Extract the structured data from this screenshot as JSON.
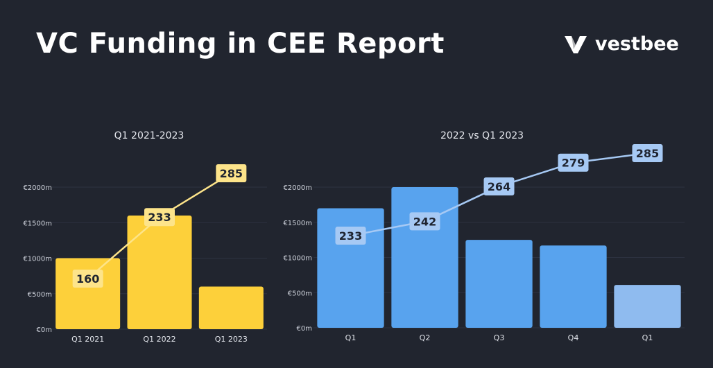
{
  "header": {
    "title": "VC Funding in CEE Report",
    "brand": "vestbee"
  },
  "colors": {
    "background": "#21252f",
    "yellow_bar": "#fdd03a",
    "yellow_label": "#fde48a",
    "blue_bar": "#58a3ee",
    "blue_bar_light": "#8fbbef",
    "blue_label": "#a6c9f4",
    "label_text": "#1f2430"
  },
  "chart_data": [
    {
      "type": "bar",
      "title": "Q1 2021-2023",
      "categories": [
        "Q1 2021",
        "Q1 2022",
        "Q1 2023"
      ],
      "values": [
        1000,
        1600,
        600
      ],
      "ylim": [
        0,
        2000
      ],
      "yticks": [
        "€0m",
        "€500m",
        "€1000m",
        "€1500m",
        "€2000m"
      ],
      "line_labels": [
        "160",
        "233",
        "285"
      ],
      "line_values": [
        160,
        233,
        285
      ],
      "grid": true
    },
    {
      "type": "bar",
      "title": "2022 vs Q1 2023",
      "categories": [
        "Q1",
        "Q2",
        "Q3",
        "Q4",
        "Q1"
      ],
      "values": [
        1700,
        2000,
        1250,
        1170,
        610
      ],
      "ylim": [
        0,
        2000
      ],
      "yticks": [
        "€0m",
        "€500m",
        "€1000m",
        "€1500m",
        "€2000m"
      ],
      "line_labels": [
        "233",
        "242",
        "264",
        "279",
        "285"
      ],
      "line_values": [
        233,
        242,
        264,
        279,
        285
      ],
      "grid": true
    }
  ]
}
